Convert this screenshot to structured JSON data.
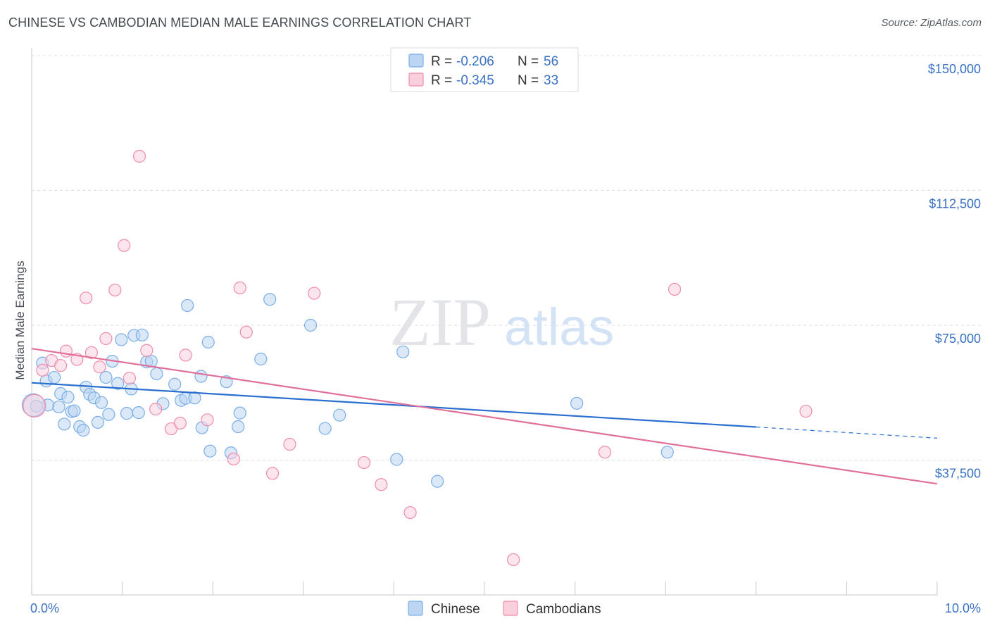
{
  "header": {
    "title": "CHINESE VS CAMBODIAN MEDIAN MALE EARNINGS CORRELATION CHART",
    "source": "Source: ZipAtlas.com"
  },
  "watermark": {
    "zip": "ZIP",
    "atlas": "atlas"
  },
  "legend": {
    "r_label": "R =",
    "n_label": "N =",
    "rows": [
      {
        "r": "-0.206",
        "n": "56",
        "color": "#7aaee8"
      },
      {
        "r": "-0.345",
        "n": "33",
        "color": "#f08bab"
      }
    ]
  },
  "colors": {
    "chinese": "#7aaee8",
    "chinese_fill": "#bcd5f3",
    "chinese_line": "#2a6fd0",
    "cambodians": "#f08bab",
    "cambodians_fill": "#f9cfdc",
    "cambodians_line": "#e0709a",
    "tick_text": "#3a72c4"
  },
  "chart_data": {
    "type": "scatter",
    "title": "CHINESE VS CAMBODIAN MEDIAN MALE EARNINGS CORRELATION CHART",
    "xlabel": "",
    "ylabel": "Median Male Earnings",
    "xlim": [
      0,
      10
    ],
    "ylim": [
      0,
      150000
    ],
    "x_tick_labels": [
      {
        "value": 0,
        "label": "0.0%"
      },
      {
        "value": 10,
        "label": "10.0%"
      }
    ],
    "y_ticks": [
      {
        "value": 37500,
        "label": "$37,500"
      },
      {
        "value": 75000,
        "label": "$75,000"
      },
      {
        "value": 112500,
        "label": "$112,500"
      },
      {
        "value": 150000,
        "label": "$150,000"
      }
    ],
    "grid": true,
    "legend_position": "top-center",
    "series": [
      {
        "name": "Chinese",
        "points": [
          [
            0.05,
            52500
          ],
          [
            0.12,
            64500
          ],
          [
            0.16,
            59500
          ],
          [
            0.18,
            52800
          ],
          [
            0.25,
            60500
          ],
          [
            0.3,
            52300
          ],
          [
            0.32,
            56000
          ],
          [
            0.36,
            47500
          ],
          [
            0.4,
            55000
          ],
          [
            0.44,
            51000
          ],
          [
            0.47,
            51200
          ],
          [
            0.53,
            46800
          ],
          [
            0.57,
            45800
          ],
          [
            0.6,
            57800
          ],
          [
            0.64,
            55800
          ],
          [
            0.69,
            54800
          ],
          [
            0.73,
            48000
          ],
          [
            0.77,
            53500
          ],
          [
            0.82,
            60500
          ],
          [
            0.85,
            50200
          ],
          [
            0.89,
            65000
          ],
          [
            0.95,
            58800
          ],
          [
            0.99,
            71000
          ],
          [
            1.05,
            50500
          ],
          [
            1.1,
            57300
          ],
          [
            1.13,
            72200
          ],
          [
            1.18,
            50700
          ],
          [
            1.22,
            72300
          ],
          [
            1.27,
            64800
          ],
          [
            1.32,
            65000
          ],
          [
            1.38,
            61500
          ],
          [
            1.45,
            53200
          ],
          [
            1.58,
            58600
          ],
          [
            1.65,
            54100
          ],
          [
            1.7,
            54700
          ],
          [
            1.72,
            80500
          ],
          [
            1.8,
            54800
          ],
          [
            1.87,
            60800
          ],
          [
            1.88,
            46500
          ],
          [
            1.95,
            70300
          ],
          [
            1.97,
            40000
          ],
          [
            2.15,
            59300
          ],
          [
            2.2,
            39500
          ],
          [
            2.28,
            46800
          ],
          [
            2.3,
            50600
          ],
          [
            2.53,
            65600
          ],
          [
            2.63,
            82200
          ],
          [
            3.08,
            75000
          ],
          [
            3.24,
            46300
          ],
          [
            3.4,
            50000
          ],
          [
            4.03,
            37700
          ],
          [
            4.1,
            67600
          ],
          [
            4.48,
            31600
          ],
          [
            6.02,
            53300
          ],
          [
            7.02,
            39700
          ],
          [
            0.02,
            52800
          ]
        ]
      },
      {
        "name": "Cambodians",
        "points": [
          [
            0.03,
            52600
          ],
          [
            0.12,
            62500
          ],
          [
            0.22,
            65200
          ],
          [
            0.32,
            63800
          ],
          [
            0.38,
            67800
          ],
          [
            0.5,
            65500
          ],
          [
            0.6,
            82600
          ],
          [
            0.66,
            67400
          ],
          [
            0.75,
            63400
          ],
          [
            0.82,
            71300
          ],
          [
            0.92,
            84800
          ],
          [
            1.02,
            97200
          ],
          [
            1.08,
            60300
          ],
          [
            1.19,
            122000
          ],
          [
            1.27,
            68000
          ],
          [
            1.37,
            51700
          ],
          [
            1.54,
            46200
          ],
          [
            1.64,
            47800
          ],
          [
            1.7,
            66700
          ],
          [
            1.94,
            48700
          ],
          [
            2.23,
            37800
          ],
          [
            2.3,
            85400
          ],
          [
            2.37,
            73100
          ],
          [
            2.66,
            33800
          ],
          [
            2.85,
            41900
          ],
          [
            3.12,
            83900
          ],
          [
            3.67,
            36800
          ],
          [
            3.86,
            30700
          ],
          [
            4.18,
            22900
          ],
          [
            5.32,
            9800
          ],
          [
            6.33,
            39700
          ],
          [
            7.1,
            85000
          ],
          [
            8.55,
            51100
          ]
        ]
      }
    ],
    "trendlines": [
      {
        "series": "Chinese",
        "x": [
          0,
          8
        ],
        "y": [
          59000,
          46700
        ],
        "dashed_extension_to_x": 10,
        "dashed_extension_y": 43600
      },
      {
        "series": "Cambodians",
        "x": [
          0,
          10
        ],
        "y": [
          68500,
          30900
        ]
      }
    ]
  },
  "bottom_legend": [
    {
      "label": "Chinese"
    },
    {
      "label": "Cambodians"
    }
  ]
}
